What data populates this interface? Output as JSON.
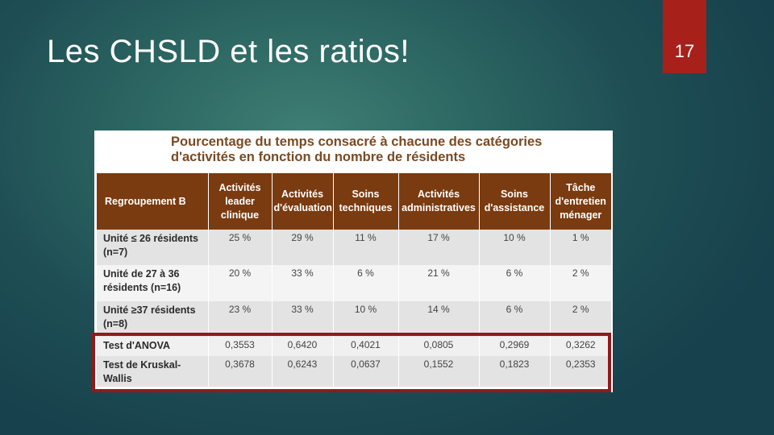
{
  "slide": {
    "title": "Les CHSLD et les ratios!",
    "page_number": "17",
    "accent_color": "#a8201a"
  },
  "figure": {
    "caption_line1": "Pourcentage du temps consacré à chacune des catégories",
    "caption_line2": "d'activités en fonction du nombre de résidents",
    "header_color": "#7a3b10",
    "columns": [
      "Regroupement B",
      "Activités leader clinique",
      "Activités d'évaluation",
      "Soins techniques",
      "Activités administratives",
      "Soins d'assistance",
      "Tâche d'entretien ménager"
    ],
    "rows": [
      {
        "label": "Unité ≤ 26 résidents (n=7)",
        "values": [
          "25 %",
          "29 %",
          "11 %",
          "17 %",
          "10 %",
          "1 %"
        ]
      },
      {
        "label": "Unité de 27 à 36 résidents (n=16)",
        "values": [
          "20 %",
          "33 %",
          "6 %",
          "21 %",
          "6 %",
          "2 %"
        ]
      },
      {
        "label": "Unité ≥37 résidents (n=8)",
        "values": [
          "23 %",
          "33 %",
          "10 %",
          "14 %",
          "6 %",
          "2 %"
        ]
      },
      {
        "label": "Test d'ANOVA",
        "values": [
          "0,3553",
          "0,6420",
          "0,4021",
          "0,0805",
          "0,2969",
          "0,3262"
        ]
      },
      {
        "label": "Test de Kruskal-Wallis",
        "values": [
          "0,3678",
          "0,6243",
          "0,0637",
          "0,1552",
          "0,1823",
          "0,2353"
        ]
      }
    ],
    "highlight_color": "#8e1b1b"
  }
}
